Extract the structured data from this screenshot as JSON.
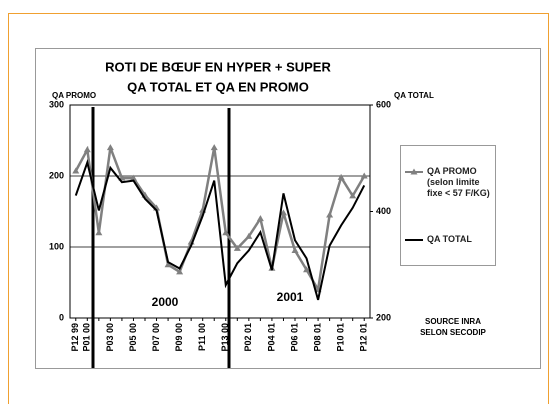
{
  "chart_data": {
    "type": "line",
    "title": "ROTI DE BŒUF EN HYPER + SUPER",
    "subtitle": "QA TOTAL   ET   QA EN PROMO",
    "y_label": "QA PROMO",
    "y2_label": "QA TOTAL",
    "categories": [
      "P12 99",
      "P01 00",
      null,
      "P03 00",
      null,
      "P05 00",
      null,
      "P07 00",
      null,
      "P09 00",
      null,
      "P11 00",
      null,
      "P13 00",
      null,
      "P02 01",
      null,
      "P04 01",
      null,
      "P06 01",
      null,
      "P08 01",
      null,
      "P10 01",
      null,
      "P12 01"
    ],
    "series": [
      {
        "name": "QA PROMO (selon limite fixe < 57 F/KG)",
        "color": "#808080",
        "marker": "triangle",
        "values": [
          207,
          237,
          120,
          240,
          197,
          197,
          173,
          155,
          75,
          65,
          107,
          152,
          240,
          120,
          98,
          115,
          140,
          70,
          148,
          95,
          68,
          40,
          145,
          198,
          172,
          200
        ]
      },
      {
        "name": "QA TOTAL",
        "color": "#000000",
        "axis": "y2",
        "values": [
          430,
          492,
          402,
          482,
          455,
          458,
          424,
          402,
          305,
          293,
          336,
          392,
          458,
          262,
          303,
          327,
          361,
          290,
          434,
          346,
          312,
          234,
          336,
          374,
          407,
          449
        ]
      }
    ],
    "ylim": [
      0,
      300
    ],
    "yticks": [
      0,
      100,
      200,
      300
    ],
    "y2lim": [
      200,
      600
    ],
    "y2ticks": [
      200,
      400,
      600
    ],
    "grid": true,
    "annotations": [
      "2000",
      "2001"
    ],
    "source": [
      "SOURCE INRA",
      "SELON SECODIP"
    ]
  }
}
